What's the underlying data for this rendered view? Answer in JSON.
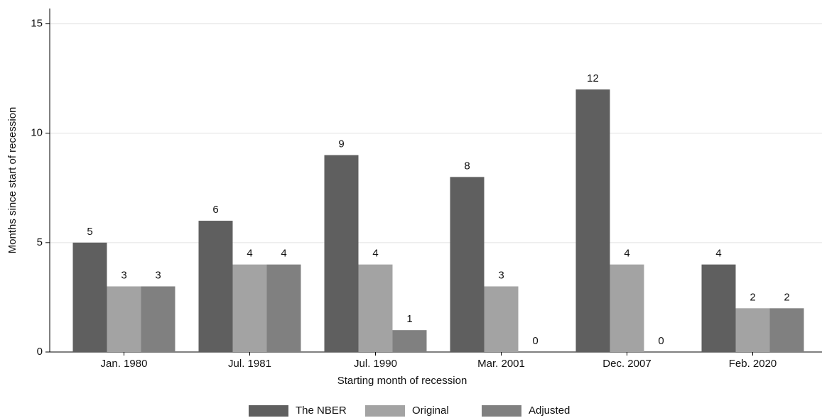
{
  "chart_data": {
    "type": "bar",
    "x_label": "Starting month of recession",
    "y_label": "Months since start of recession",
    "categories": [
      "Jan. 1980",
      "Jul. 1981",
      "Jul. 1990",
      "Mar. 2001",
      "Dec. 2007",
      "Feb. 2020"
    ],
    "series": [
      {
        "name": "The NBER",
        "color": "#5f5f5f",
        "values": [
          5,
          6,
          9,
          8,
          12,
          4
        ]
      },
      {
        "name": "Original",
        "color": "#a3a3a3",
        "values": [
          3,
          4,
          4,
          3,
          4,
          2
        ]
      },
      {
        "name": "Adjusted",
        "color": "#808080",
        "values": [
          3,
          4,
          1,
          0,
          0,
          2
        ]
      }
    ],
    "ylim": [
      0,
      15.7
    ],
    "yticks": [
      0,
      5,
      10,
      15
    ],
    "grid": true,
    "legend": "bottom"
  }
}
